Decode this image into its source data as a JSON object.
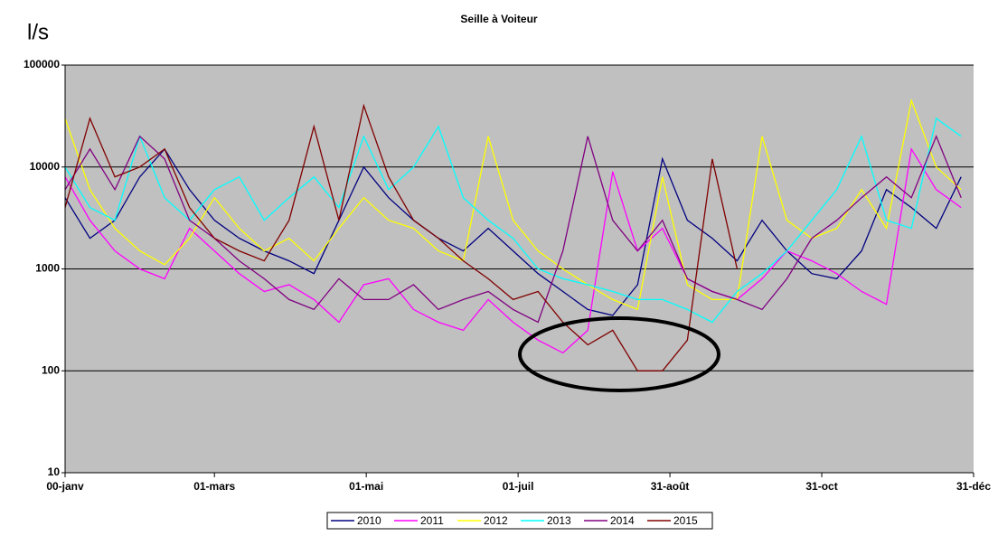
{
  "chart_data": {
    "type": "line",
    "title": "Seille à Voiteur",
    "y_label": "l/s",
    "x": [
      0,
      10,
      20,
      30,
      40,
      50,
      60,
      70,
      80,
      90,
      100,
      110,
      120,
      130,
      140,
      150,
      160,
      170,
      180,
      190,
      200,
      210,
      220,
      230,
      240,
      250,
      260,
      270,
      280,
      290,
      300,
      310,
      320,
      330,
      340,
      350,
      360
    ],
    "xlim": [
      0,
      365
    ],
    "xticks": [
      {
        "value": 0,
        "label": "00-janv"
      },
      {
        "value": 60,
        "label": "01-mars"
      },
      {
        "value": 121,
        "label": "01-mai"
      },
      {
        "value": 182,
        "label": "01-juil"
      },
      {
        "value": 243,
        "label": "31-août"
      },
      {
        "value": 304,
        "label": "31-oct"
      },
      {
        "value": 365,
        "label": "31-déc"
      }
    ],
    "ylim": [
      10,
      100000
    ],
    "yticks": [
      10,
      100,
      1000,
      10000,
      100000
    ],
    "log_y": true,
    "grid": true,
    "legend": "bottom",
    "series": [
      {
        "name": "2010",
        "color": "#000080",
        "values": [
          5000,
          2000,
          3000,
          8000,
          15000,
          6000,
          3000,
          2000,
          1500,
          1200,
          900,
          3000,
          10000,
          5000,
          3000,
          2000,
          1500,
          2500,
          1500,
          900,
          600,
          400,
          350,
          700,
          12000,
          3000,
          2000,
          1200,
          3000,
          1500,
          900,
          800,
          1500,
          6000,
          4000,
          2500,
          8000
        ]
      },
      {
        "name": "2011",
        "color": "#ff00ff",
        "values": [
          8000,
          3000,
          1500,
          1000,
          800,
          2500,
          1500,
          900,
          600,
          700,
          500,
          300,
          700,
          800,
          400,
          300,
          250,
          500,
          300,
          200,
          150,
          250,
          9000,
          1500,
          2500,
          800,
          600,
          500,
          800,
          1500,
          1200,
          900,
          600,
          450,
          15000,
          6000,
          4000
        ]
      },
      {
        "name": "2012",
        "color": "#ffff00",
        "values": [
          30000,
          6000,
          2500,
          1500,
          1100,
          2000,
          5000,
          2500,
          1500,
          2000,
          1200,
          2500,
          5000,
          3000,
          2500,
          1500,
          1200,
          20000,
          3000,
          1500,
          1000,
          700,
          500,
          400,
          8000,
          700,
          500,
          500,
          20000,
          3000,
          2000,
          2500,
          6000,
          2500,
          45000,
          10000,
          6000
        ]
      },
      {
        "name": "2013",
        "color": "#00ffff",
        "values": [
          10000,
          4000,
          3000,
          20000,
          5000,
          3000,
          6000,
          8000,
          3000,
          5000,
          8000,
          4000,
          20000,
          6000,
          10000,
          25000,
          5000,
          3000,
          2000,
          1000,
          800,
          700,
          600,
          500,
          500,
          400,
          300,
          600,
          900,
          1500,
          3000,
          6000,
          20000,
          3000,
          2500,
          30000,
          20000
        ]
      },
      {
        "name": "2014",
        "color": "#800080",
        "values": [
          6000,
          15000,
          6000,
          20000,
          12000,
          3000,
          2000,
          1200,
          800,
          500,
          400,
          800,
          500,
          500,
          700,
          400,
          500,
          600,
          400,
          300,
          1500,
          20000,
          3000,
          1500,
          3000,
          800,
          600,
          500,
          400,
          800,
          2000,
          3000,
          5000,
          8000,
          5000,
          20000,
          5000
        ]
      },
      {
        "name": "2015",
        "color": "#800000",
        "values": [
          4000,
          30000,
          8000,
          10000,
          15000,
          4000,
          2000,
          1500,
          1200,
          3000,
          25000,
          3000,
          40000,
          8000,
          3000,
          2000,
          1200,
          800,
          500,
          600,
          300,
          180,
          250,
          100,
          100,
          200,
          12000,
          1000,
          null,
          null,
          null,
          null,
          null,
          null,
          null,
          null,
          null
        ]
      }
    ]
  }
}
